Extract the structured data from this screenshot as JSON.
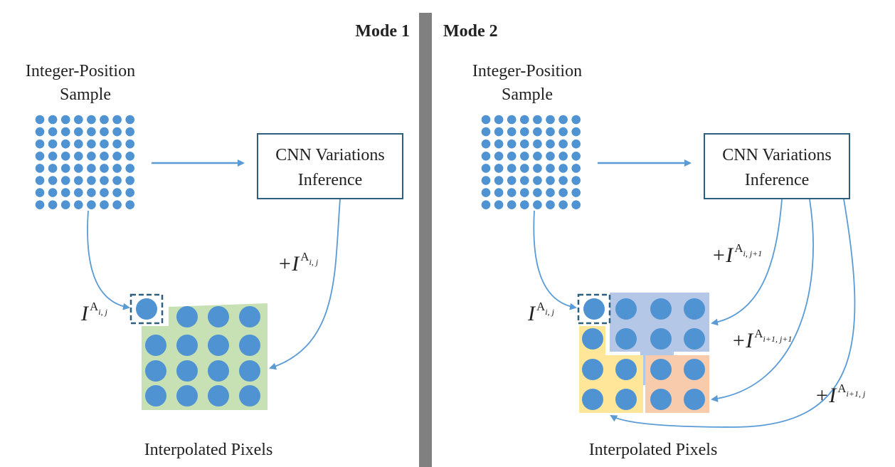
{
  "modes": [
    {
      "title": "Mode 1",
      "input_label_line1": "Integer-Position",
      "input_label_line2": "Sample",
      "cnn_line1": "CNN Variations",
      "cnn_line2": "Inference",
      "output_label": "Interpolated Pixels",
      "base_symbol": "I",
      "base_superscript": "A",
      "base_subscript": "i, j",
      "add_terms": [
        {
          "prefix": "+I",
          "sup": "A",
          "sub": "i, j"
        }
      ]
    },
    {
      "title": "Mode 2",
      "input_label_line1": "Integer-Position",
      "input_label_line2": "Sample",
      "cnn_line1": "CNN Variations",
      "cnn_line2": "Inference",
      "output_label": "Interpolated Pixels",
      "base_symbol": "I",
      "base_superscript": "A",
      "base_subscript": "i, j",
      "add_terms": [
        {
          "prefix": "+I",
          "sup": "A",
          "sub": "i, j+1"
        },
        {
          "prefix": "+I",
          "sup": "A",
          "sub": "i+1, j+1"
        },
        {
          "prefix": "+I",
          "sup": "A",
          "sub": "i+1, j"
        }
      ]
    }
  ],
  "colors": {
    "dot": "#4f93d2",
    "arrow": "#5b9bd5",
    "box_border": "#2e5f7f",
    "divider": "#808080",
    "green_region": "#c7e0b4",
    "blue_region": "#b4c7e7",
    "yellow_region": "#ffe699",
    "orange_region": "#f8cbad"
  }
}
